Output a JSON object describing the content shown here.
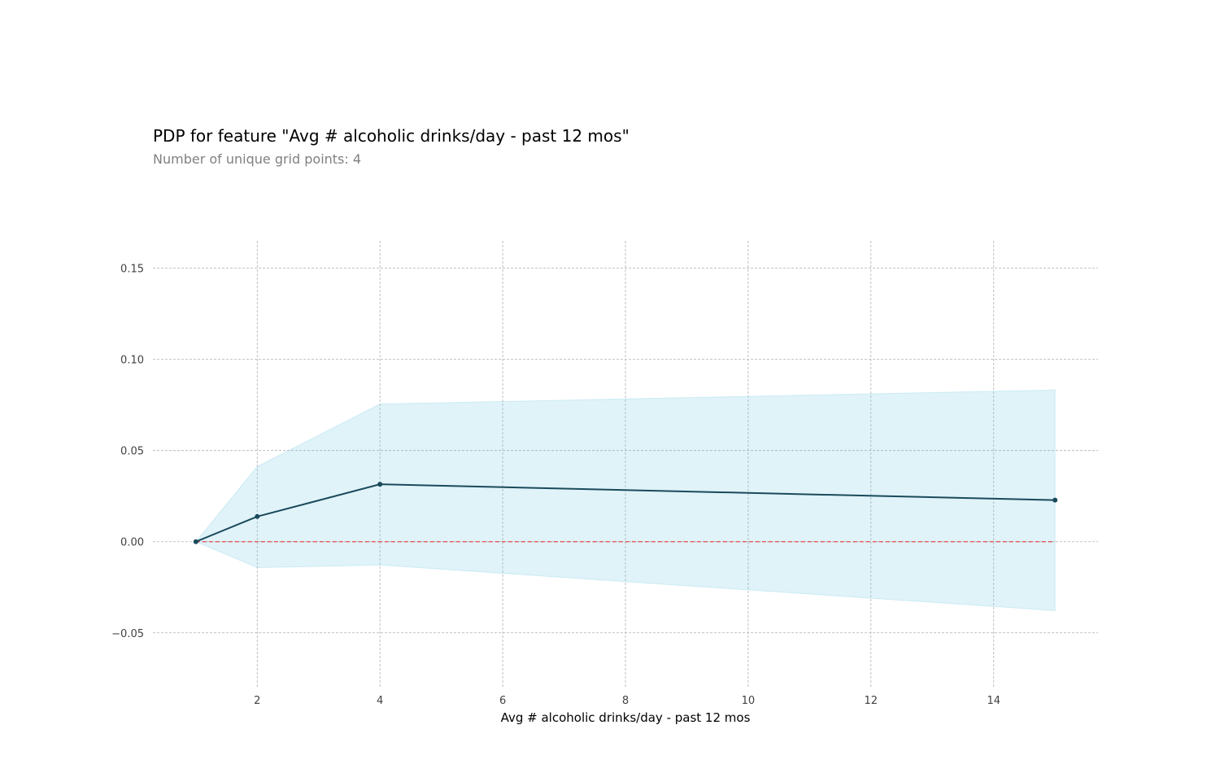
{
  "chart_data": {
    "type": "line",
    "title": "PDP for feature \"Avg # alcoholic drinks/day - past 12 mos\"",
    "subtitle": "Number of unique grid points: 4",
    "xlabel": "Avg # alcoholic drinks/day - past 12 mos",
    "ylabel": "",
    "x": [
      1,
      2,
      4,
      15
    ],
    "series": [
      {
        "values": [
          0.0,
          0.0138,
          0.0315,
          0.0228
        ],
        "lower": [
          0.0,
          -0.0142,
          -0.0128,
          -0.0378
        ],
        "upper": [
          0.0,
          0.0412,
          0.0755,
          0.0832
        ]
      }
    ],
    "baseline": 0.0,
    "xlim": [
      0.3,
      15.7
    ],
    "ylim": [
      -0.08,
      0.165
    ],
    "x_ticks": [
      2,
      4,
      6,
      8,
      10,
      12,
      14
    ],
    "x_tick_labels": [
      "2",
      "4",
      "6",
      "8",
      "10",
      "12",
      "14"
    ],
    "y_ticks": [
      -0.05,
      0.0,
      0.05,
      0.1,
      0.15
    ],
    "y_tick_labels": [
      "−0.05",
      "0.00",
      "0.05",
      "0.10",
      "0.15"
    ],
    "grid": true,
    "colors": {
      "line": "#1a4a5c",
      "band": "#66c2e0",
      "baseline": "#e84a4a",
      "grid": "#b0b0b0"
    }
  }
}
